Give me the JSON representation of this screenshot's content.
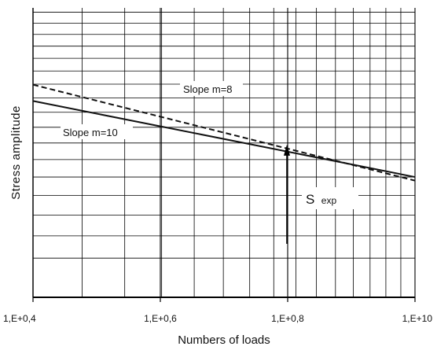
{
  "chart_data": {
    "type": "line",
    "title": "",
    "xlabel": "Numbers  of loads",
    "ylabel": "Stress   amplitude",
    "xscale": "log",
    "yscale": "log",
    "xlim": [
      2.512,
      10
    ],
    "x_ticks": [
      {
        "value": 2.512,
        "label": "1,E+0,4"
      },
      {
        "value": 3.981,
        "label": "1,E+0,6"
      },
      {
        "value": 6.31,
        "label": "1,E+0,8"
      },
      {
        "value": 10,
        "label": "1,E+10"
      }
    ],
    "grid": true,
    "series": [
      {
        "name": "Slope m=10",
        "line_style": "solid",
        "color": "#111111",
        "x": [
          2.512,
          10
        ],
        "y_rel": [
          1.139,
          0.9
        ]
      },
      {
        "name": "Slope m=8",
        "line_style": "dashed",
        "color": "#111111",
        "x": [
          2.512,
          10
        ],
        "y_rel": [
          1.198,
          0.89
        ]
      }
    ],
    "annotations": [
      {
        "text": "Slope m=8",
        "target": "dashed"
      },
      {
        "text": "Slope m=10",
        "target": "solid"
      },
      {
        "text": "S",
        "subscript": "exp",
        "x": 6.31,
        "arrow": "up"
      }
    ]
  }
}
